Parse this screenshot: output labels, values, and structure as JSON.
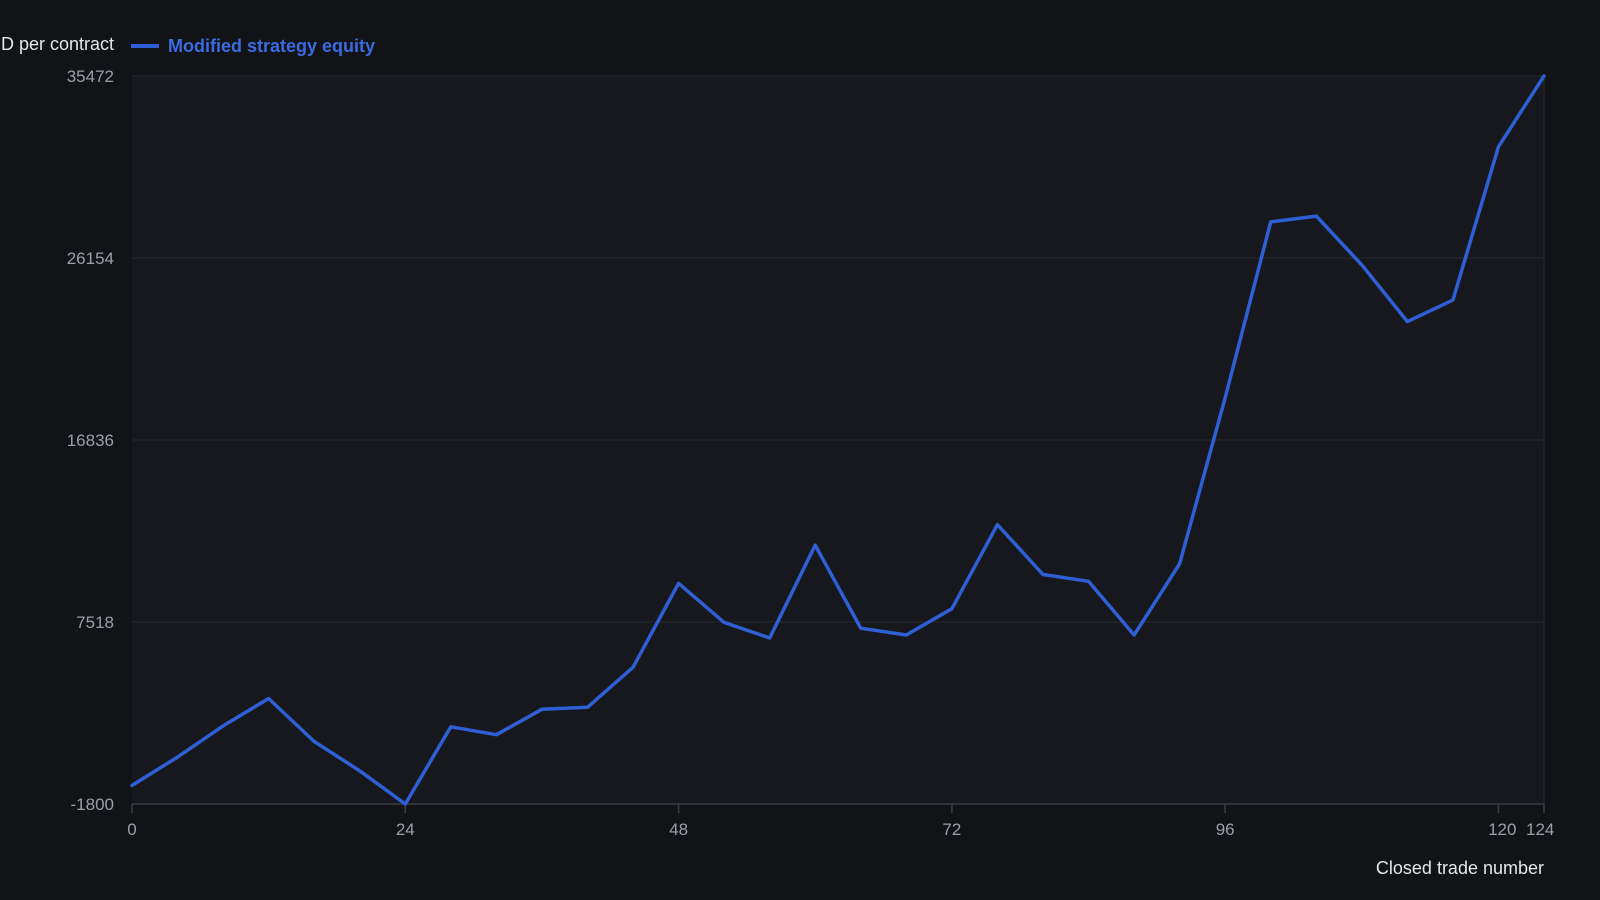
{
  "chart_data": {
    "type": "line",
    "ylabel_visible": "D per contract",
    "xlabel": "Closed trade number",
    "legend_position": "top-left",
    "grid": "horizontal",
    "colors": {
      "background": "#111317",
      "plot_background": "#16181d",
      "line": "#2f5fd4",
      "legend_text": "#3b6be0",
      "tick_text": "#9aa0a8",
      "label_text": "#e4e6ea",
      "grid": "#262a31",
      "axis": "#3a3e46"
    },
    "series": [
      {
        "name": "Modified strategy equity",
        "x": [
          0,
          4,
          8,
          12,
          16,
          20,
          24,
          28,
          32,
          36,
          40,
          44,
          48,
          52,
          56,
          60,
          64,
          68,
          72,
          76,
          80,
          84,
          88,
          92,
          96,
          100,
          104,
          108,
          112,
          116,
          120,
          124
        ],
        "y": [
          -850,
          600,
          2200,
          3600,
          1400,
          -100,
          -1800,
          2150,
          1750,
          3050,
          3150,
          5200,
          9500,
          7500,
          6700,
          11450,
          7200,
          6850,
          8200,
          12500,
          9950,
          9600,
          6850,
          10500,
          19000,
          28000,
          28300,
          25800,
          22900,
          24000,
          31850,
          35472
        ]
      }
    ],
    "xticks": [
      "0",
      "24",
      "48",
      "72",
      "96",
      "120",
      "124"
    ],
    "xtick_values": [
      0,
      24,
      48,
      72,
      96,
      120,
      124
    ],
    "yticks": [
      "35472",
      "26154",
      "16836",
      "7518",
      "-1800"
    ],
    "ytick_values": [
      35472,
      26154,
      16836,
      7518,
      -1800
    ],
    "xlim": [
      0,
      124
    ],
    "ylim": [
      -1800,
      35472
    ]
  }
}
